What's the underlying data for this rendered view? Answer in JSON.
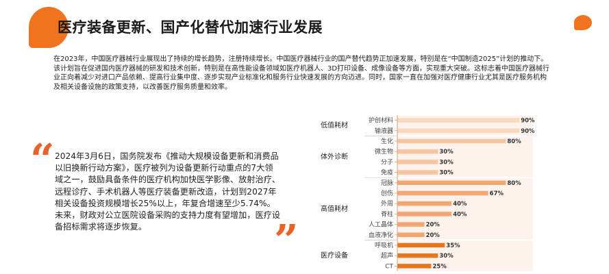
{
  "header": {
    "title": "医疗装备更新、国产化替代加速行业发展"
  },
  "intro": {
    "text": "在2023年，中国医疗器械行业展现出了持续的增长趋势，注册持续增长。中国医疗器械行业的国产替代趋势正加速发展，特别是在“中国制造2025”计划的推动下。该计划旨在促进国内医疗器械的研发和技术创新，特别是在高性能设备领域如医疗机器人、3D打印设备、成像设备等方面，实现重大突破。这标志着中国医疗器械行业正向着减少对进口产品依赖、提高行业集中度、逐步实现产业标准化和服务行业快速发展的方向迈进。同时，国家一直在加强对医疗健康行业尤其是医疗服务机构及相关设备设施的政策支持，以改善医疗服务质量和效率。"
  },
  "quote": {
    "open_mark": "“",
    "close_mark": "”",
    "text": "2024年3月6日，国务院发布《推动大规模设备更新和消费品以旧换新行动方案》，医疗被列为设备更新行动重点的7大领域之一，鼓励具备条件的医疗机构加快医学影像、放射治疗、远程诊疗、手术机器人等医疗装备更新改造，计划到2027年相关设备投资规模增长25%以上，年复合增速至少5.74%。未来，财政对公立医院设备采购的支持力度有望增加，医疗设备招标需求将逐步恢复。"
  },
  "colors": {
    "accent": "#f0731f",
    "group_colors": [
      "#f8d8bf",
      "#f6c6a2",
      "#f2a771",
      "#e4781f"
    ]
  },
  "chart_data": {
    "type": "bar",
    "orientation": "horizontal",
    "xlim": [
      0,
      100
    ],
    "value_suffix": "%",
    "groups": [
      {
        "name": "低值耗材",
        "items": [
          {
            "label": "护创材料",
            "value": 90
          },
          {
            "label": "输液器",
            "value": 90
          }
        ]
      },
      {
        "name": "体外诊断",
        "items": [
          {
            "label": "生化",
            "value": 80
          },
          {
            "label": "微生物",
            "value": 30
          },
          {
            "label": "分子",
            "value": 30
          },
          {
            "label": "免疫",
            "value": 30
          }
        ]
      },
      {
        "name": "高值耗材",
        "items": [
          {
            "label": "冠脉",
            "value": 80
          },
          {
            "label": "创伤",
            "value": 67
          },
          {
            "label": "外周",
            "value": 40
          },
          {
            "label": "脊柱",
            "value": 40
          },
          {
            "label": "人工晶体",
            "value": 20
          },
          {
            "label": "血液净化",
            "value": 20
          }
        ]
      },
      {
        "name": "医疗设备",
        "items": [
          {
            "label": "呼吸机",
            "value": 35
          },
          {
            "label": "超声",
            "value": 30
          },
          {
            "label": "CT",
            "value": 25
          }
        ]
      }
    ]
  }
}
